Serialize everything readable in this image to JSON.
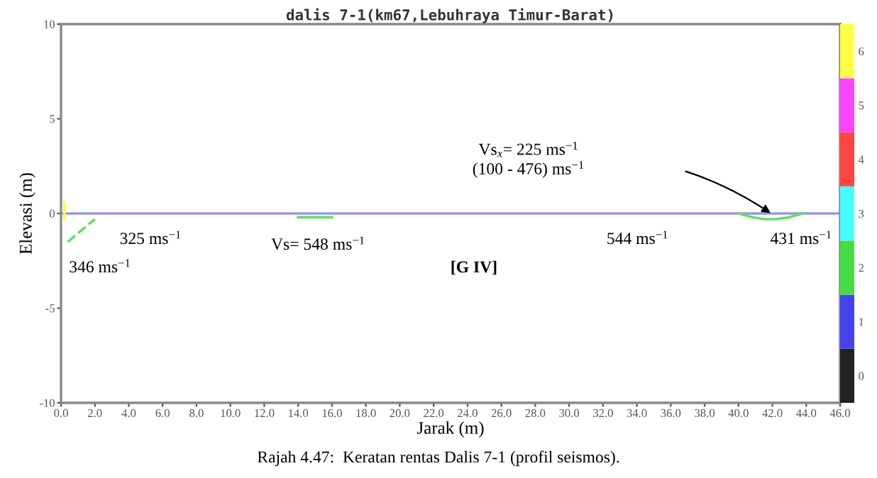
{
  "chart_data": {
    "type": "line",
    "title": "dalis 7-1(km67,Lebuhraya Timur-Barat)",
    "xlabel": "Jarak (m)",
    "ylabel": "Elevasi (m)",
    "series": [
      {
        "x": [
          0,
          46
        ],
        "values": [
          0,
          0
        ],
        "color": "#9999dd"
      },
      {
        "x": [
          0.2,
          0.2
        ],
        "values": [
          -0.3,
          0.6
        ],
        "color": "#ffff33"
      },
      {
        "x": [
          0.4,
          2.0
        ],
        "values": [
          -1.5,
          -0.3
        ],
        "color": "#66dd66",
        "line_style": "dashed"
      },
      {
        "x": [
          14.0,
          16.0
        ],
        "values": [
          -0.2,
          -0.2
        ],
        "color": "#66dd66"
      },
      {
        "x": [
          40.0,
          40.8,
          41.5,
          42.2,
          43.0,
          43.8
        ],
        "values": [
          0,
          -0.2,
          -0.3,
          -0.3,
          -0.2,
          0
        ],
        "color": "#66dd66"
      }
    ],
    "xlim": [
      0,
      46
    ],
    "ylim": [
      -10,
      10
    ],
    "xticks": [
      {
        "value": 0,
        "label": "0.0"
      },
      {
        "value": 2,
        "label": "2.0"
      },
      {
        "value": 4,
        "label": "4.0"
      },
      {
        "value": 6,
        "label": "6.0"
      },
      {
        "value": 8,
        "label": "8.0"
      },
      {
        "value": 10,
        "label": "10.0"
      },
      {
        "value": 12,
        "label": "12.0"
      },
      {
        "value": 14,
        "label": "14.0"
      },
      {
        "value": 16,
        "label": "16.0"
      },
      {
        "value": 18,
        "label": "18.0"
      },
      {
        "value": 20,
        "label": "20.0"
      },
      {
        "value": 22,
        "label": "22.0"
      },
      {
        "value": 24,
        "label": "24.0"
      },
      {
        "value": 26,
        "label": "26.0"
      },
      {
        "value": 28,
        "label": "28.0"
      },
      {
        "value": 30,
        "label": "30.0"
      },
      {
        "value": 32,
        "label": "32.0"
      },
      {
        "value": 34,
        "label": "34.0"
      },
      {
        "value": 36,
        "label": "36.0"
      },
      {
        "value": 38,
        "label": "38.0"
      },
      {
        "value": 40,
        "label": "40.0"
      },
      {
        "value": 42,
        "label": "42.0"
      },
      {
        "value": 44,
        "label": "44.0"
      },
      {
        "value": 46,
        "label": "46.0"
      }
    ],
    "yticks": [
      -10,
      -5,
      0,
      5,
      10
    ],
    "clim": [
      -0.5,
      6.5
    ],
    "cticks": [
      0,
      1,
      2,
      3,
      4,
      5,
      6
    ],
    "colors": [
      "#222222",
      "#4444ee",
      "#44dd44",
      "#44ffff",
      "#ff4444",
      "#ff44ff",
      "#ffff44"
    ],
    "grid": false,
    "legend": false,
    "marker": "none",
    "annotations": [
      "Vs$_{x}$= 225 ms$^{−1}$\n(100 - 476) ms$^{−1}$",
      "325 ms$^{−1}$",
      "346 ms$^{−1}$",
      "Vs= 548 ms$^{−1}$",
      "544 ms$^{−1}$",
      "431 ms$^{−1}$",
      "[G IV]",
      "Rajah 4.47:  Keratan rentas Dalis 7-1 (profil seismos)."
    ]
  }
}
